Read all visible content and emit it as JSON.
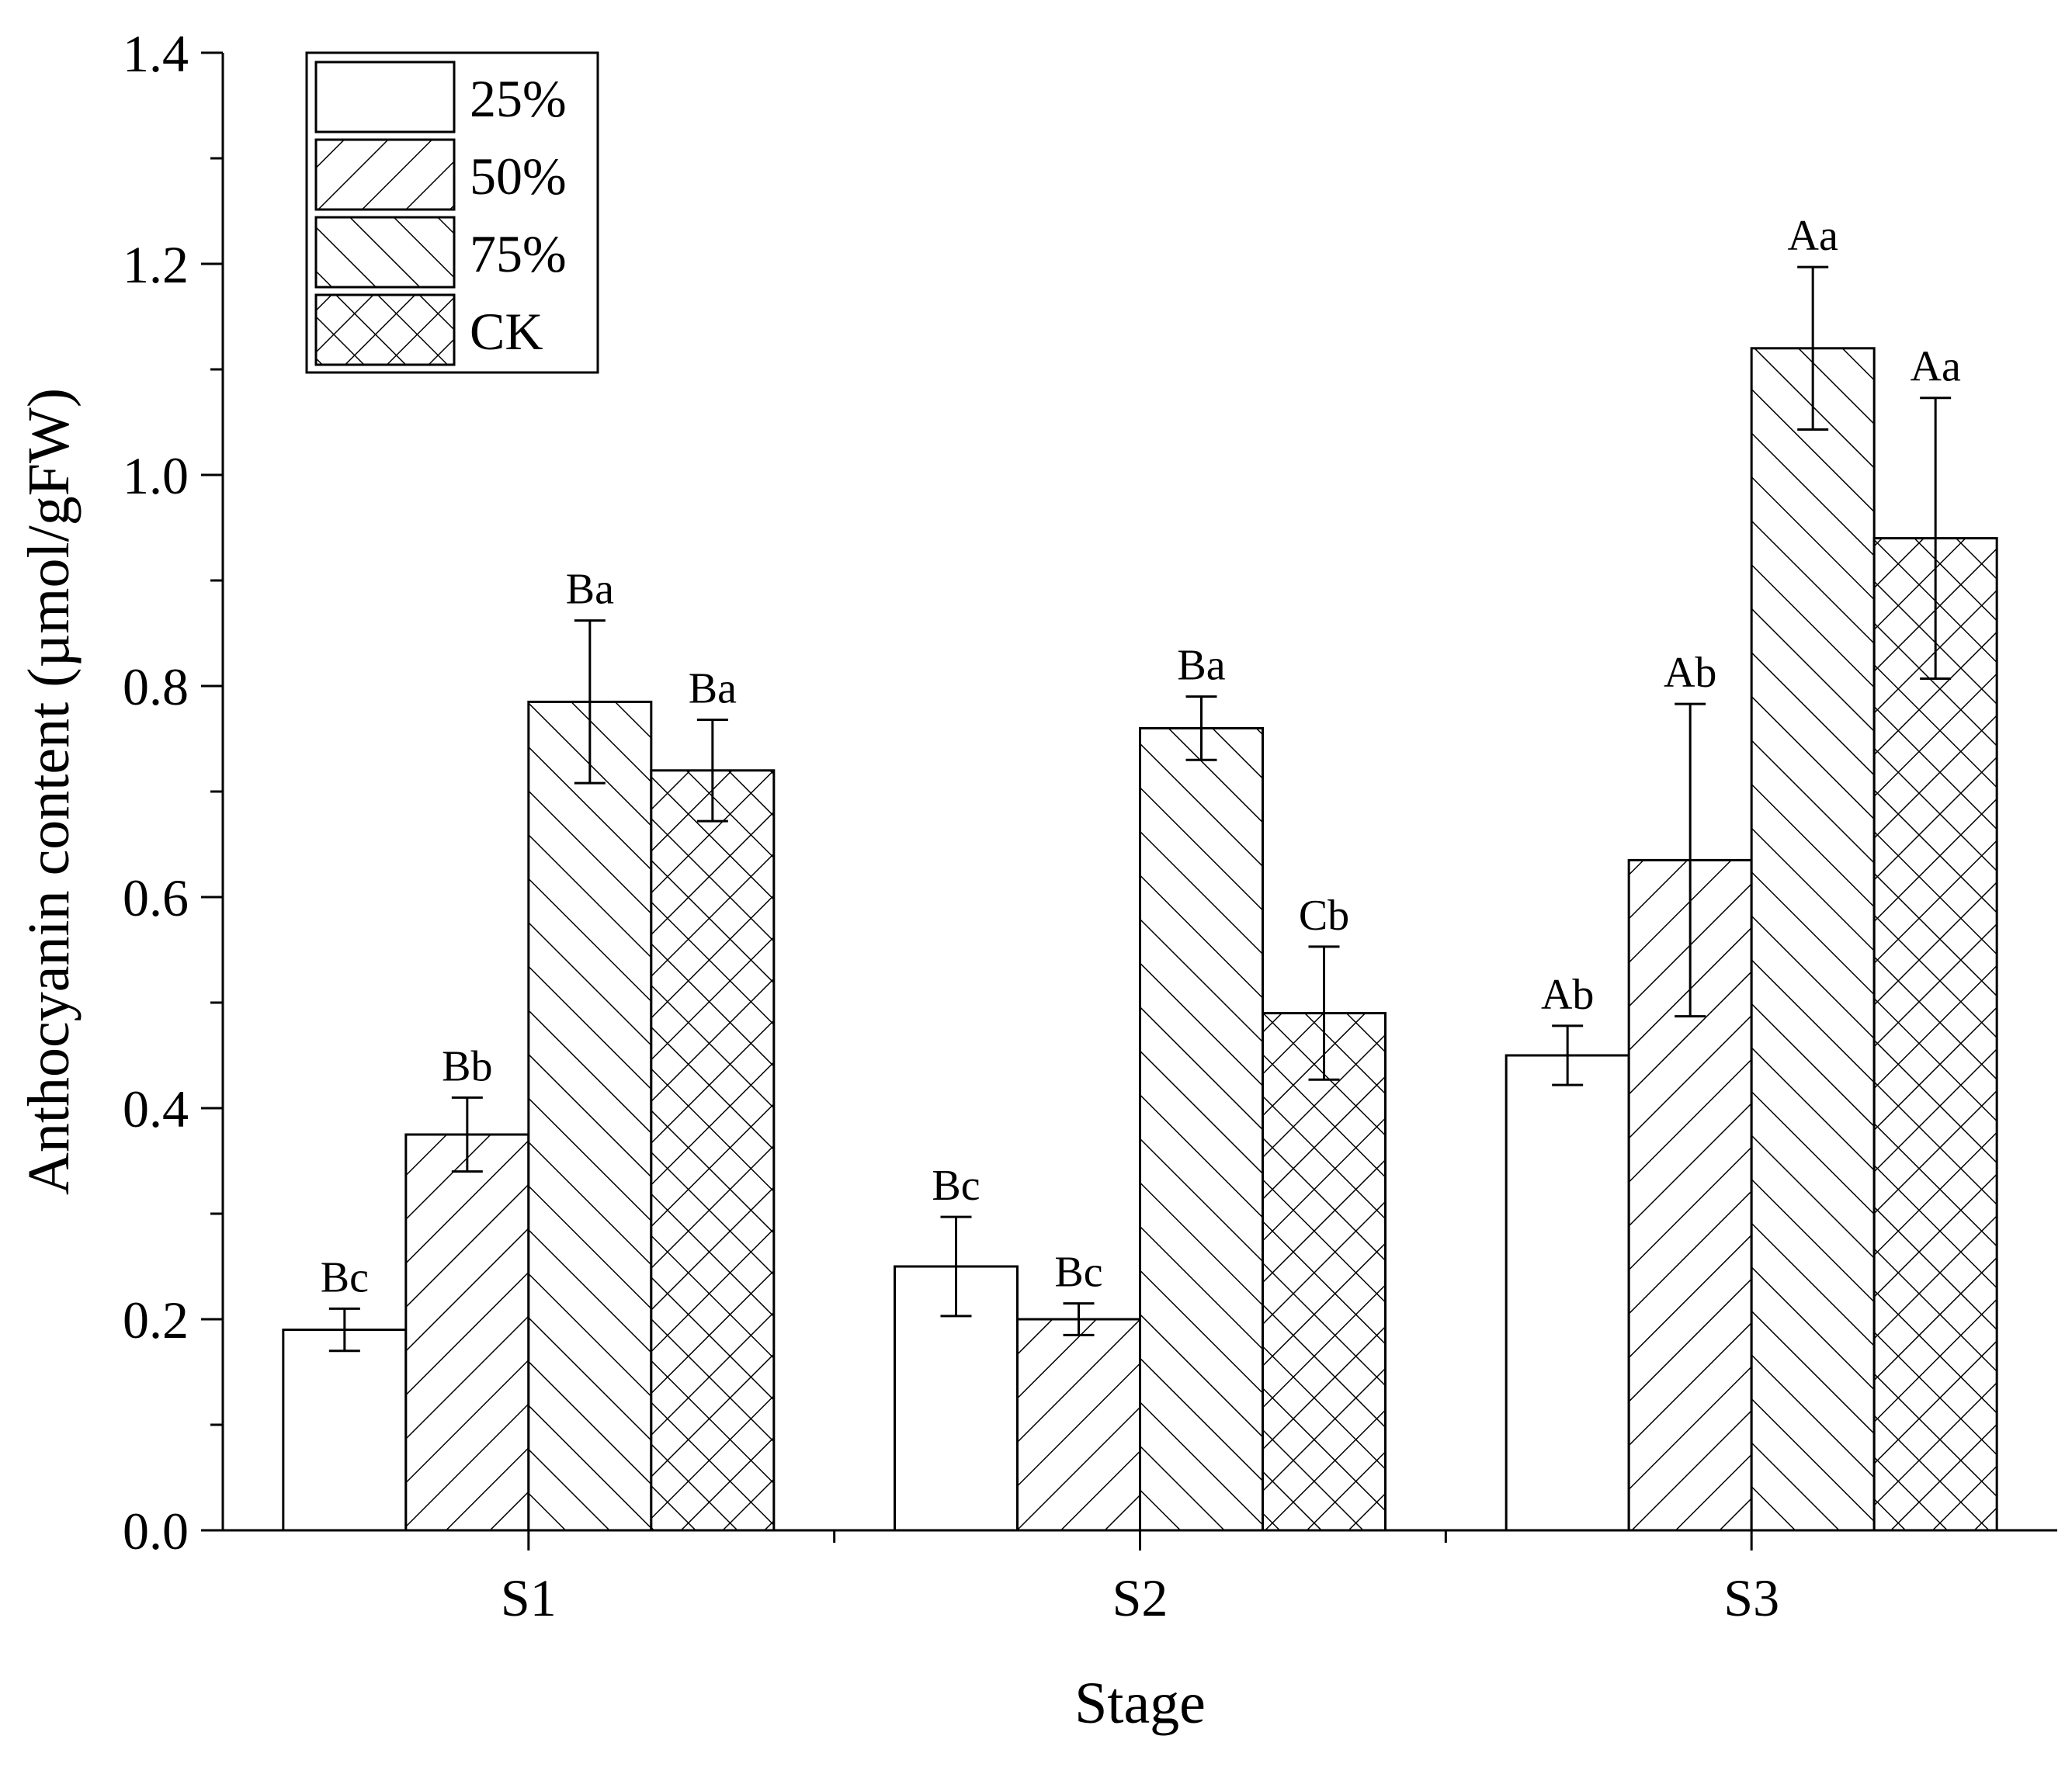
{
  "chart_data": {
    "type": "bar",
    "title": "",
    "xlabel": "Stage",
    "ylabel": "Anthocyanin content (µmol/gFW)",
    "ylim": [
      0.0,
      1.4
    ],
    "yticks": [
      "0.0",
      "0.2",
      "0.4",
      "0.6",
      "0.8",
      "1.0",
      "1.2",
      "1.4"
    ],
    "ytick_values": [
      0.0,
      0.2,
      0.4,
      0.6,
      0.8,
      1.0,
      1.2,
      1.4
    ],
    "categories": [
      "S1",
      "S2",
      "S3"
    ],
    "legend_position": "top-left",
    "grid": false,
    "series": [
      {
        "name": "25%",
        "pattern": "none",
        "values": [
          0.19,
          0.25,
          0.45
        ],
        "errors": [
          0.02,
          0.047,
          0.028
        ],
        "labels": [
          "Bc",
          "Bc",
          "Ab"
        ]
      },
      {
        "name": "50%",
        "pattern": "forward-diagonal",
        "values": [
          0.375,
          0.2,
          0.635
        ],
        "errors": [
          0.035,
          0.015,
          0.148
        ],
        "labels": [
          "Bb",
          "Bc",
          "Ab"
        ]
      },
      {
        "name": "75%",
        "pattern": "back-diagonal",
        "values": [
          0.785,
          0.76,
          1.12
        ],
        "errors": [
          0.077,
          0.03,
          0.077
        ],
        "labels": [
          "Ba",
          "Ba",
          "Aa"
        ]
      },
      {
        "name": "CK",
        "pattern": "crosshatch",
        "values": [
          0.72,
          0.49,
          0.94
        ],
        "errors": [
          0.048,
          0.063,
          0.133
        ],
        "labels": [
          "Ba",
          "Cb",
          "Aa"
        ]
      }
    ]
  }
}
